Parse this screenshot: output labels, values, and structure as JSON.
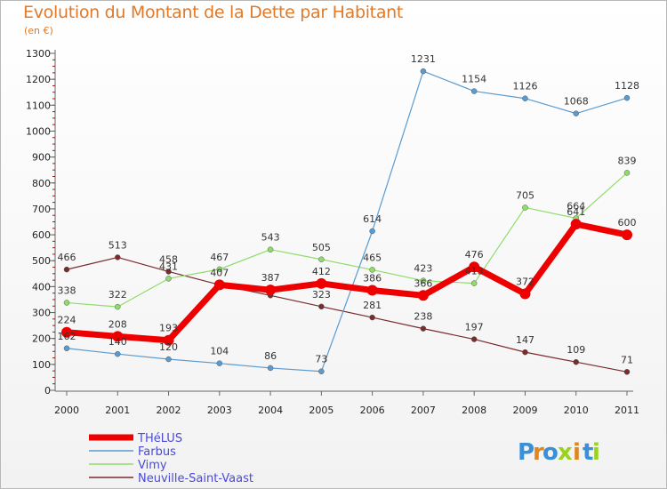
{
  "title": "Evolution du Montant de la Dette par Habitant",
  "subtitle": "(en €)",
  "logo": {
    "letters": [
      "P",
      "r",
      "o",
      "x",
      "i",
      "t",
      "i"
    ],
    "colors": [
      "#3a8fd6",
      "#e0861f",
      "#3a8fd6",
      "#9ad21e",
      "#e0861f",
      "#3a8fd6",
      "#9ad21e"
    ]
  },
  "chart_data": {
    "type": "line",
    "title": "Evolution du Montant de la Dette par Habitant",
    "subtitle": "(en €)",
    "xlabel": "",
    "ylabel": "",
    "ylim": [
      0,
      1300
    ],
    "yticks": [
      "0",
      "100",
      "200",
      "300",
      "400",
      "500",
      "600",
      "700",
      "800",
      "900",
      "1000",
      "1100",
      "1200",
      "1300"
    ],
    "x": [
      "2000",
      "2001",
      "2002",
      "2003",
      "2004",
      "2005",
      "2006",
      "2007",
      "2008",
      "2009",
      "2010",
      "2011"
    ],
    "grid": false,
    "legend_position": "bottom-left",
    "series": [
      {
        "name": "Neuville-Saint-Vaast",
        "color": "#7a2b2b",
        "width": 1.2,
        "values": [
          466,
          513,
          458,
          407,
          366,
          323,
          281,
          238,
          197,
          147,
          109,
          71
        ],
        "labels": [
          "466",
          "513",
          "458",
          "",
          "",
          "323",
          "281",
          "238",
          "197",
          "147",
          "109",
          "71"
        ]
      },
      {
        "name": "Vimy",
        "color": "#90dc6a",
        "width": 1.2,
        "values": [
          338,
          322,
          431,
          467,
          543,
          505,
          465,
          423,
          413,
          705,
          664,
          839
        ],
        "labels": [
          "338",
          "322",
          "431",
          "467",
          "543",
          "505",
          "465",
          "423",
          "413",
          "705",
          "664",
          "839"
        ]
      },
      {
        "name": "Farbus",
        "color": "#5a9bd0",
        "width": 1.2,
        "values": [
          162,
          140,
          120,
          104,
          86,
          73,
          614,
          1231,
          1154,
          1126,
          1068,
          1128
        ],
        "labels": [
          "162",
          "140",
          "120",
          "104",
          "86",
          "73",
          "614",
          "1231",
          "1154",
          "1126",
          "1068",
          "1128"
        ]
      },
      {
        "name": "THéLUS",
        "color": "#ee0000",
        "width": 7,
        "values": [
          224,
          208,
          193,
          407,
          387,
          412,
          386,
          366,
          476,
          372,
          641,
          600
        ],
        "labels": [
          "224",
          "208",
          "193",
          "407",
          "387",
          "412",
          "386",
          "366",
          "476",
          "372",
          "641",
          "600"
        ]
      }
    ],
    "legend": [
      "THéLUS",
      "Farbus",
      "Vimy",
      "Neuville-Saint-Vaast"
    ]
  }
}
